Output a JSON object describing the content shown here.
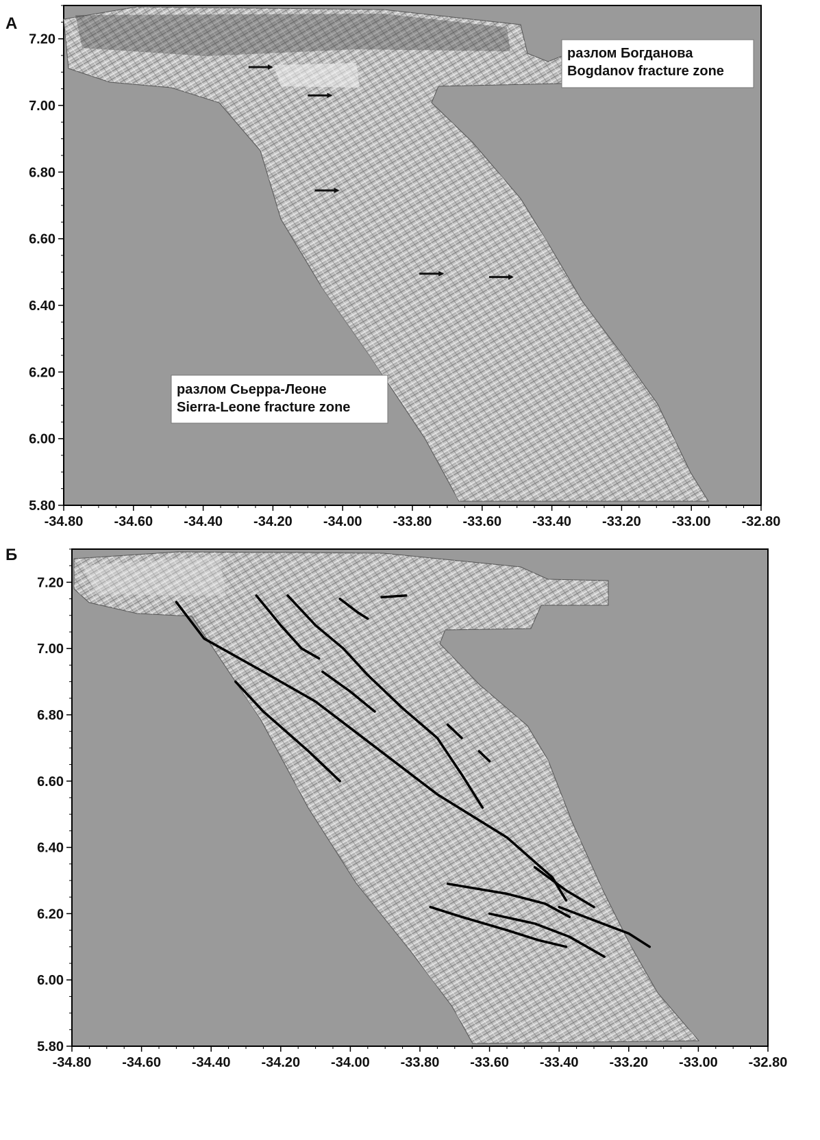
{
  "panels": [
    {
      "label": "А",
      "x_ticks": [
        "-34.80",
        "-34.60",
        "-34.40",
        "-34.20",
        "-34.00",
        "-33.80",
        "-33.60",
        "-33.40",
        "-33.20",
        "-33.00",
        "-32.80"
      ],
      "y_ticks": [
        "7.20",
        "7.00",
        "6.80",
        "6.60",
        "6.40",
        "6.20",
        "6.00",
        "5.80"
      ],
      "callouts": [
        {
          "line1": "разлом Богданова",
          "line2": "Bogdanov fracture zone"
        },
        {
          "line1": "разлом Сьерра-Леоне",
          "line2": "Sierra-Leone fracture zone"
        }
      ],
      "arrows": [
        {
          "lon": -34.27,
          "lat": 7.115
        },
        {
          "lon": -34.1,
          "lat": 7.03
        },
        {
          "lon": -34.08,
          "lat": 6.745
        },
        {
          "lon": -33.78,
          "lat": 6.495
        },
        {
          "lon": -33.58,
          "lat": 6.485
        }
      ]
    },
    {
      "label": "Б",
      "x_ticks": [
        "-34.80",
        "-34.60",
        "-34.40",
        "-34.20",
        "-34.00",
        "-33.80",
        "-33.60",
        "-33.40",
        "-33.20",
        "-33.00",
        "-32.80"
      ],
      "y_ticks": [
        "7.20",
        "7.00",
        "6.80",
        "6.60",
        "6.40",
        "6.20",
        "6.00",
        "5.80"
      ],
      "fault_lines": [
        [
          [
            -34.5,
            7.14
          ],
          [
            -34.42,
            7.03
          ],
          [
            -34.25,
            6.93
          ],
          [
            -34.1,
            6.84
          ],
          [
            -33.95,
            6.72
          ],
          [
            -33.75,
            6.56
          ],
          [
            -33.55,
            6.43
          ],
          [
            -33.42,
            6.31
          ],
          [
            -33.38,
            6.24
          ]
        ],
        [
          [
            -34.33,
            6.9
          ],
          [
            -34.25,
            6.81
          ],
          [
            -34.12,
            6.69
          ],
          [
            -34.03,
            6.6
          ]
        ],
        [
          [
            -34.27,
            7.16
          ],
          [
            -34.2,
            7.07
          ],
          [
            -34.14,
            7.0
          ],
          [
            -34.09,
            6.97
          ]
        ],
        [
          [
            -34.18,
            7.16
          ],
          [
            -34.1,
            7.07
          ],
          [
            -34.02,
            7.0
          ],
          [
            -33.95,
            6.92
          ],
          [
            -33.85,
            6.82
          ],
          [
            -33.75,
            6.73
          ],
          [
            -33.68,
            6.62
          ],
          [
            -33.62,
            6.52
          ]
        ],
        [
          [
            -34.08,
            6.93
          ],
          [
            -34.0,
            6.87
          ],
          [
            -33.93,
            6.81
          ]
        ],
        [
          [
            -34.03,
            7.15
          ],
          [
            -33.98,
            7.11
          ],
          [
            -33.95,
            7.09
          ]
        ],
        [
          [
            -33.91,
            7.155
          ],
          [
            -33.84,
            7.16
          ]
        ],
        [
          [
            -33.72,
            6.77
          ],
          [
            -33.68,
            6.73
          ]
        ],
        [
          [
            -33.63,
            6.69
          ],
          [
            -33.6,
            6.66
          ]
        ],
        [
          [
            -33.47,
            6.34
          ],
          [
            -33.38,
            6.27
          ],
          [
            -33.3,
            6.22
          ]
        ],
        [
          [
            -33.72,
            6.29
          ],
          [
            -33.55,
            6.26
          ],
          [
            -33.44,
            6.23
          ],
          [
            -33.37,
            6.19
          ]
        ],
        [
          [
            -33.77,
            6.22
          ],
          [
            -33.68,
            6.19
          ],
          [
            -33.55,
            6.15
          ],
          [
            -33.46,
            6.12
          ],
          [
            -33.38,
            6.1
          ]
        ],
        [
          [
            -33.6,
            6.2
          ],
          [
            -33.47,
            6.17
          ],
          [
            -33.37,
            6.13
          ],
          [
            -33.27,
            6.07
          ]
        ],
        [
          [
            -33.4,
            6.22
          ],
          [
            -33.3,
            6.18
          ],
          [
            -33.2,
            6.14
          ],
          [
            -33.14,
            6.1
          ]
        ]
      ]
    }
  ]
}
